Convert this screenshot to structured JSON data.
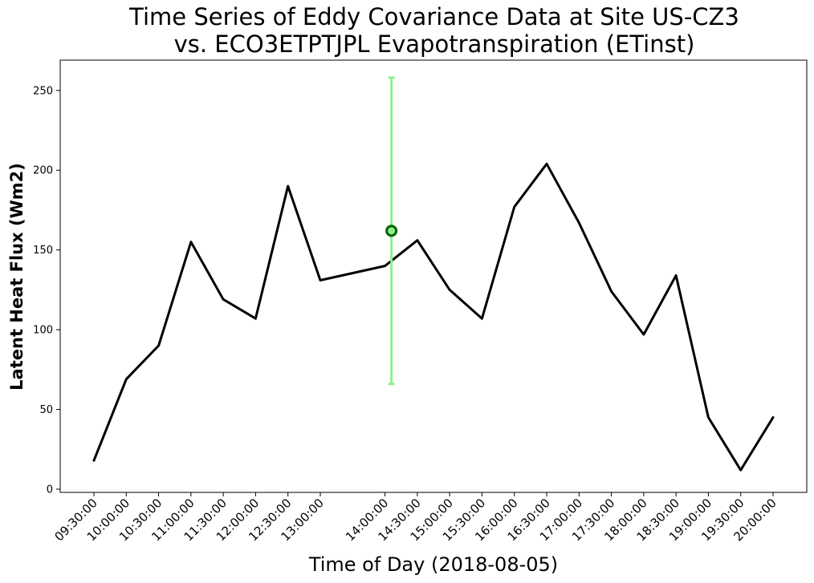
{
  "chart_data": {
    "type": "line",
    "title_line1": "Time Series of Eddy Covariance Data at Site US-CZ3",
    "title_line2": "vs. ECO3ETPTJPL Evapotranspiration (ETinst)",
    "xlabel": "Time of Day (2018-08-05)",
    "ylabel": "Latent Heat Flux (Wm2)",
    "ylim": [
      -2,
      269
    ],
    "yticks": [
      0,
      50,
      100,
      150,
      200,
      250
    ],
    "grid": false,
    "series": [
      {
        "color": "#000000",
        "x": [
          "09:30:00",
          "10:00:00",
          "10:30:00",
          "11:00:00",
          "11:30:00",
          "12:00:00",
          "12:30:00",
          "13:00:00",
          "14:00:00",
          "14:30:00",
          "15:00:00",
          "15:30:00",
          "16:00:00",
          "16:30:00",
          "17:00:00",
          "17:30:00",
          "18:00:00",
          "18:30:00",
          "19:00:00",
          "19:30:00",
          "20:00:00"
        ],
        "y": [
          18,
          69,
          90,
          155,
          119,
          107,
          190,
          131,
          140,
          156,
          125,
          107,
          177,
          204,
          167,
          124,
          97,
          134,
          45,
          12,
          45
        ]
      }
    ],
    "satellite_point": {
      "x": "14:06:00",
      "y": 162,
      "yerr_low": 66,
      "yerr_high": 258,
      "point_color": "#90ee90",
      "edge_color": "#006400",
      "errorbar_color": "#90ee90"
    }
  }
}
